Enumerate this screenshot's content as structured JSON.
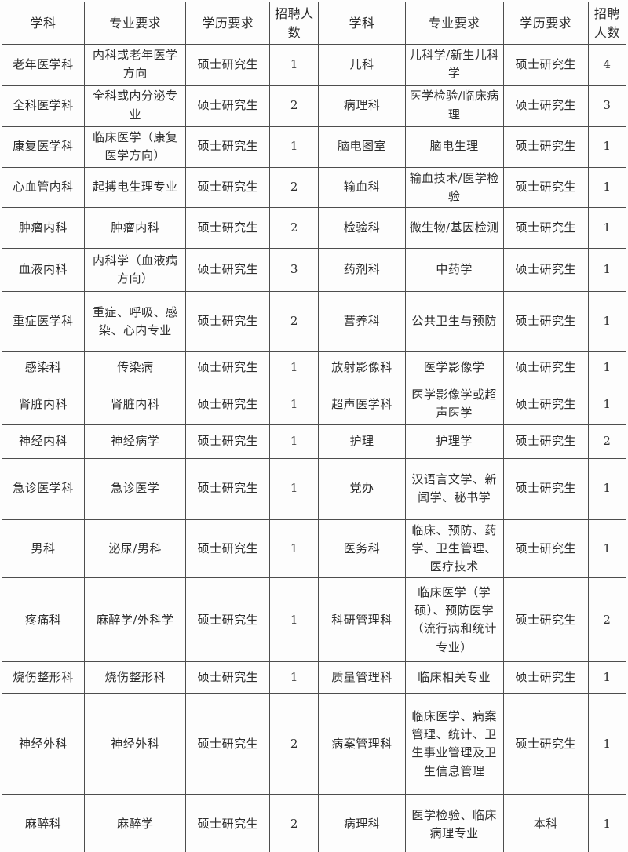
{
  "table": {
    "headers": [
      "学科",
      "专业要求",
      "学历要求",
      "招聘人数",
      "学科",
      "专业要求",
      "学历要求",
      "招聘人数"
    ],
    "rows": [
      [
        "老年医学科",
        "内科或老年医学方向",
        "硕士研究生",
        "1",
        "儿科",
        "儿科学/新生儿科学",
        "硕士研究生",
        "4"
      ],
      [
        "全科医学科",
        "全科或内分泌专业",
        "硕士研究生",
        "2",
        "病理科",
        "医学检验/临床病理",
        "硕士研究生",
        "3"
      ],
      [
        "康复医学科",
        "临床医学（康复医学方向）",
        "硕士研究生",
        "1",
        "脑电图室",
        "脑电生理",
        "硕士研究生",
        "1"
      ],
      [
        "心血管内科",
        "起搏电生理专业",
        "硕士研究生",
        "2",
        "输血科",
        "输血技术/医学检验",
        "硕士研究生",
        "1"
      ],
      [
        "肿瘤内科",
        "肿瘤内科",
        "硕士研究生",
        "2",
        "检验科",
        "微生物/基因检测",
        "硕士研究生",
        "1"
      ],
      [
        "血液内科",
        "内科学（血液病方向）",
        "硕士研究生",
        "3",
        "药剂科",
        "中药学",
        "硕士研究生",
        "1"
      ],
      [
        "重症医学科",
        "重症、呼吸、感染、心内专业",
        "硕士研究生",
        "2",
        "营养科",
        "公共卫生与预防",
        "硕士研究生",
        "1"
      ],
      [
        "感染科",
        "传染病",
        "硕士研究生",
        "1",
        "放射影像科",
        "医学影像学",
        "硕士研究生",
        "1"
      ],
      [
        "肾脏内科",
        "肾脏内科",
        "硕士研究生",
        "1",
        "超声医学科",
        "医学影像学或超声医学",
        "硕士研究生",
        "1"
      ],
      [
        "神经内科",
        "神经病学",
        "硕士研究生",
        "1",
        "护理",
        "护理学",
        "硕士研究生",
        "2"
      ],
      [
        "急诊医学科",
        "急诊医学",
        "硕士研究生",
        "1",
        "党办",
        "汉语言文学、新闻学、秘书学",
        "硕士研究生",
        "1"
      ],
      [
        "男科",
        "泌尿/男科",
        "硕士研究生",
        "1",
        "医务科",
        "临床、预防、药学、卫生管理、医疗技术",
        "硕士研究生",
        "1"
      ],
      [
        "疼痛科",
        "麻醉学/外科学",
        "硕士研究生",
        "1",
        "科研管理科",
        "临床医学（学硕）、预防医学（流行病和统计专业）",
        "硕士研究生",
        "2"
      ],
      [
        "烧伤整形科",
        "烧伤整形科",
        "硕士研究生",
        "1",
        "质量管理科",
        "临床相关专业",
        "硕士研究生",
        "1"
      ],
      [
        "神经外科",
        "神经外科",
        "硕士研究生",
        "2",
        "病案管理科",
        "临床医学、病案管理、统计、卫生事业管理及卫生信息管理",
        "硕士研究生",
        "1"
      ],
      [
        "麻醉科",
        "麻醉学",
        "硕士研究生",
        "2",
        "病理科",
        "医学检验、临床病理专业",
        "本科",
        "1"
      ]
    ]
  }
}
